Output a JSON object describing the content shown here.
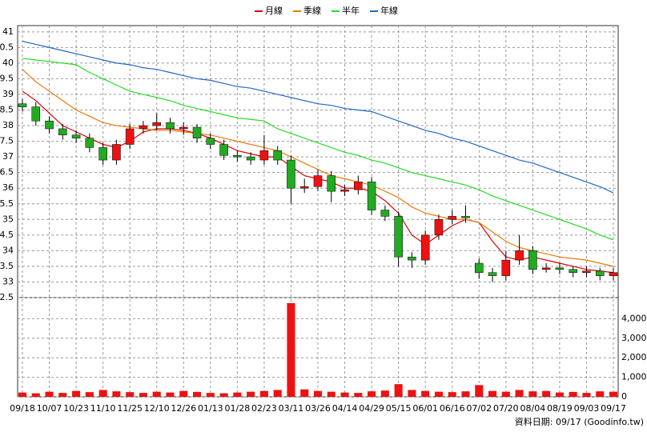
{
  "chart_data": {
    "type": "candlestick",
    "categories": [
      "09/18",
      null,
      "10/07",
      null,
      "10/23",
      null,
      "11/10",
      null,
      "11/25",
      null,
      "12/10",
      null,
      "12/26",
      null,
      "01/13",
      null,
      "01/28",
      null,
      "02/23",
      null,
      "03/11",
      null,
      "03/26",
      null,
      "04/14",
      null,
      "04/29",
      null,
      "05/15",
      null,
      "06/01",
      null,
      "06/16",
      null,
      "07/02",
      null,
      "07/20",
      null,
      "08/04",
      null,
      "08/19",
      null,
      "09/03",
      null,
      "09/17"
    ],
    "open": [
      38.7,
      38.6,
      38.15,
      37.9,
      37.7,
      37.6,
      37.3,
      36.9,
      37.4,
      37.9,
      38.0,
      38.1,
      37.9,
      37.95,
      37.6,
      37.4,
      37.05,
      37.0,
      36.9,
      37.2,
      36.9,
      36.0,
      36.05,
      36.4,
      35.9,
      35.95,
      36.2,
      35.3,
      35.1,
      33.8,
      33.7,
      34.5,
      35.0,
      35.1,
      33.6,
      33.3,
      33.2,
      33.7,
      34.0,
      33.4,
      33.45,
      33.4,
      33.3,
      33.35,
      33.2
    ],
    "high": [
      38.85,
      38.75,
      38.3,
      38.05,
      37.85,
      37.75,
      37.45,
      37.55,
      38.05,
      38.15,
      38.4,
      38.25,
      38.1,
      38.05,
      37.75,
      37.55,
      37.2,
      37.15,
      37.7,
      37.35,
      37.05,
      36.3,
      36.6,
      36.55,
      36.1,
      36.4,
      36.35,
      35.45,
      35.25,
      33.95,
      34.65,
      35.15,
      35.3,
      35.45,
      33.75,
      33.45,
      34.0,
      34.5,
      34.15,
      33.6,
      33.6,
      33.5,
      33.5,
      33.45,
      33.45
    ],
    "low": [
      38.45,
      38.0,
      37.75,
      37.55,
      37.45,
      37.15,
      36.75,
      36.75,
      37.25,
      37.75,
      37.85,
      37.75,
      37.7,
      37.45,
      37.25,
      36.9,
      36.85,
      36.75,
      36.75,
      36.75,
      35.5,
      35.85,
      35.9,
      35.55,
      35.75,
      35.8,
      35.15,
      34.95,
      33.5,
      33.45,
      33.55,
      34.35,
      34.85,
      34.9,
      33.1,
      33.0,
      33.05,
      33.55,
      33.25,
      33.3,
      33.25,
      33.15,
      33.15,
      33.05,
      33.05
    ],
    "close": [
      38.6,
      38.15,
      37.9,
      37.7,
      37.6,
      37.3,
      36.9,
      37.4,
      37.9,
      38.0,
      38.1,
      37.9,
      37.95,
      37.6,
      37.4,
      37.05,
      37.0,
      36.9,
      37.2,
      36.9,
      36.0,
      36.05,
      36.4,
      35.9,
      35.95,
      36.2,
      35.3,
      35.1,
      33.8,
      33.7,
      34.5,
      35.0,
      35.1,
      35.05,
      33.3,
      33.2,
      33.7,
      34.0,
      33.4,
      33.45,
      33.4,
      33.3,
      33.35,
      33.2,
      33.3
    ],
    "up_color": "#ee1111",
    "down_color": "#22aa22",
    "series": [
      {
        "name": "月線",
        "color": "#dd0000",
        "values": [
          39.1,
          38.8,
          38.4,
          38.0,
          37.8,
          37.6,
          37.4,
          37.3,
          37.5,
          37.8,
          37.9,
          37.9,
          37.85,
          37.75,
          37.6,
          37.4,
          37.2,
          37.1,
          37.0,
          37.0,
          36.7,
          36.4,
          36.3,
          36.2,
          36.0,
          36.0,
          35.9,
          35.6,
          35.2,
          34.5,
          34.2,
          34.5,
          34.8,
          35.0,
          34.9,
          34.3,
          33.8,
          33.7,
          33.8,
          33.7,
          33.6,
          33.5,
          33.4,
          33.35,
          33.3
        ]
      },
      {
        "name": "季線",
        "color": "#ee7700",
        "values": [
          39.8,
          39.4,
          39.1,
          38.8,
          38.5,
          38.3,
          38.1,
          38.0,
          37.95,
          37.9,
          37.85,
          37.85,
          37.8,
          37.75,
          37.7,
          37.6,
          37.5,
          37.4,
          37.3,
          37.2,
          37.0,
          36.8,
          36.6,
          36.4,
          36.3,
          36.2,
          36.1,
          35.9,
          35.7,
          35.4,
          35.2,
          35.1,
          35.0,
          35.0,
          34.9,
          34.6,
          34.3,
          34.1,
          34.0,
          33.9,
          33.8,
          33.75,
          33.7,
          33.6,
          33.5
        ]
      },
      {
        "name": "半年",
        "color": "#22dd22",
        "values": [
          40.15,
          40.1,
          40.05,
          40.0,
          39.95,
          39.7,
          39.5,
          39.3,
          39.1,
          39.0,
          38.9,
          38.8,
          38.65,
          38.55,
          38.45,
          38.35,
          38.25,
          38.2,
          38.15,
          37.9,
          37.75,
          37.6,
          37.45,
          37.3,
          37.15,
          37.05,
          36.9,
          36.8,
          36.65,
          36.5,
          36.4,
          36.3,
          36.2,
          36.1,
          35.95,
          35.75,
          35.6,
          35.45,
          35.3,
          35.15,
          35.0,
          34.85,
          34.7,
          34.5,
          34.35
        ]
      },
      {
        "name": "年線",
        "color": "#2266cc",
        "values": [
          40.7,
          40.6,
          40.5,
          40.4,
          40.3,
          40.2,
          40.1,
          40.0,
          39.95,
          39.85,
          39.8,
          39.7,
          39.6,
          39.5,
          39.45,
          39.35,
          39.25,
          39.2,
          39.1,
          39.0,
          38.9,
          38.8,
          38.7,
          38.65,
          38.55,
          38.5,
          38.45,
          38.3,
          38.15,
          38.0,
          37.85,
          37.75,
          37.6,
          37.5,
          37.35,
          37.2,
          37.05,
          36.9,
          36.8,
          36.65,
          36.5,
          36.35,
          36.2,
          36.05,
          35.85
        ]
      }
    ],
    "ylim": [
      32.5,
      41.2
    ],
    "yticks": [
      {
        "value": 32.5,
        "label": "2.5"
      },
      33,
      {
        "value": 33.5,
        "label": "3.5"
      },
      34,
      {
        "value": 34.5,
        "label": "4.5"
      },
      35,
      {
        "value": 35.5,
        "label": "5.5"
      },
      36,
      {
        "value": 36.5,
        "label": "6.5"
      },
      37,
      {
        "value": 37.5,
        "label": "7.5"
      },
      38,
      {
        "value": 38.5,
        "label": "8.5"
      },
      39,
      {
        "value": 39.5,
        "label": "9.5"
      },
      40,
      {
        "value": 40.5,
        "label": "0.5"
      },
      41
    ],
    "volume": {
      "color": "#ee1111",
      "values": [
        220,
        180,
        260,
        200,
        300,
        240,
        350,
        280,
        240,
        200,
        260,
        220,
        300,
        250,
        200,
        180,
        220,
        260,
        300,
        350,
        4800,
        380,
        300,
        260,
        220,
        200,
        280,
        320,
        650,
        350,
        300,
        260,
        240,
        280,
        600,
        300,
        260,
        350,
        280,
        300,
        220,
        250,
        200,
        280,
        260
      ],
      "ylim": [
        0,
        5000
      ],
      "yticks": [
        0,
        {
          "value": 1000,
          "label": "1,000"
        },
        {
          "value": 2000,
          "label": "2,000"
        },
        {
          "value": 3000,
          "label": "3,000"
        },
        {
          "value": 4000,
          "label": "4,000"
        }
      ]
    },
    "grid": true,
    "footer": "資料日期: 09/17 (Goodinfo.tw)"
  }
}
